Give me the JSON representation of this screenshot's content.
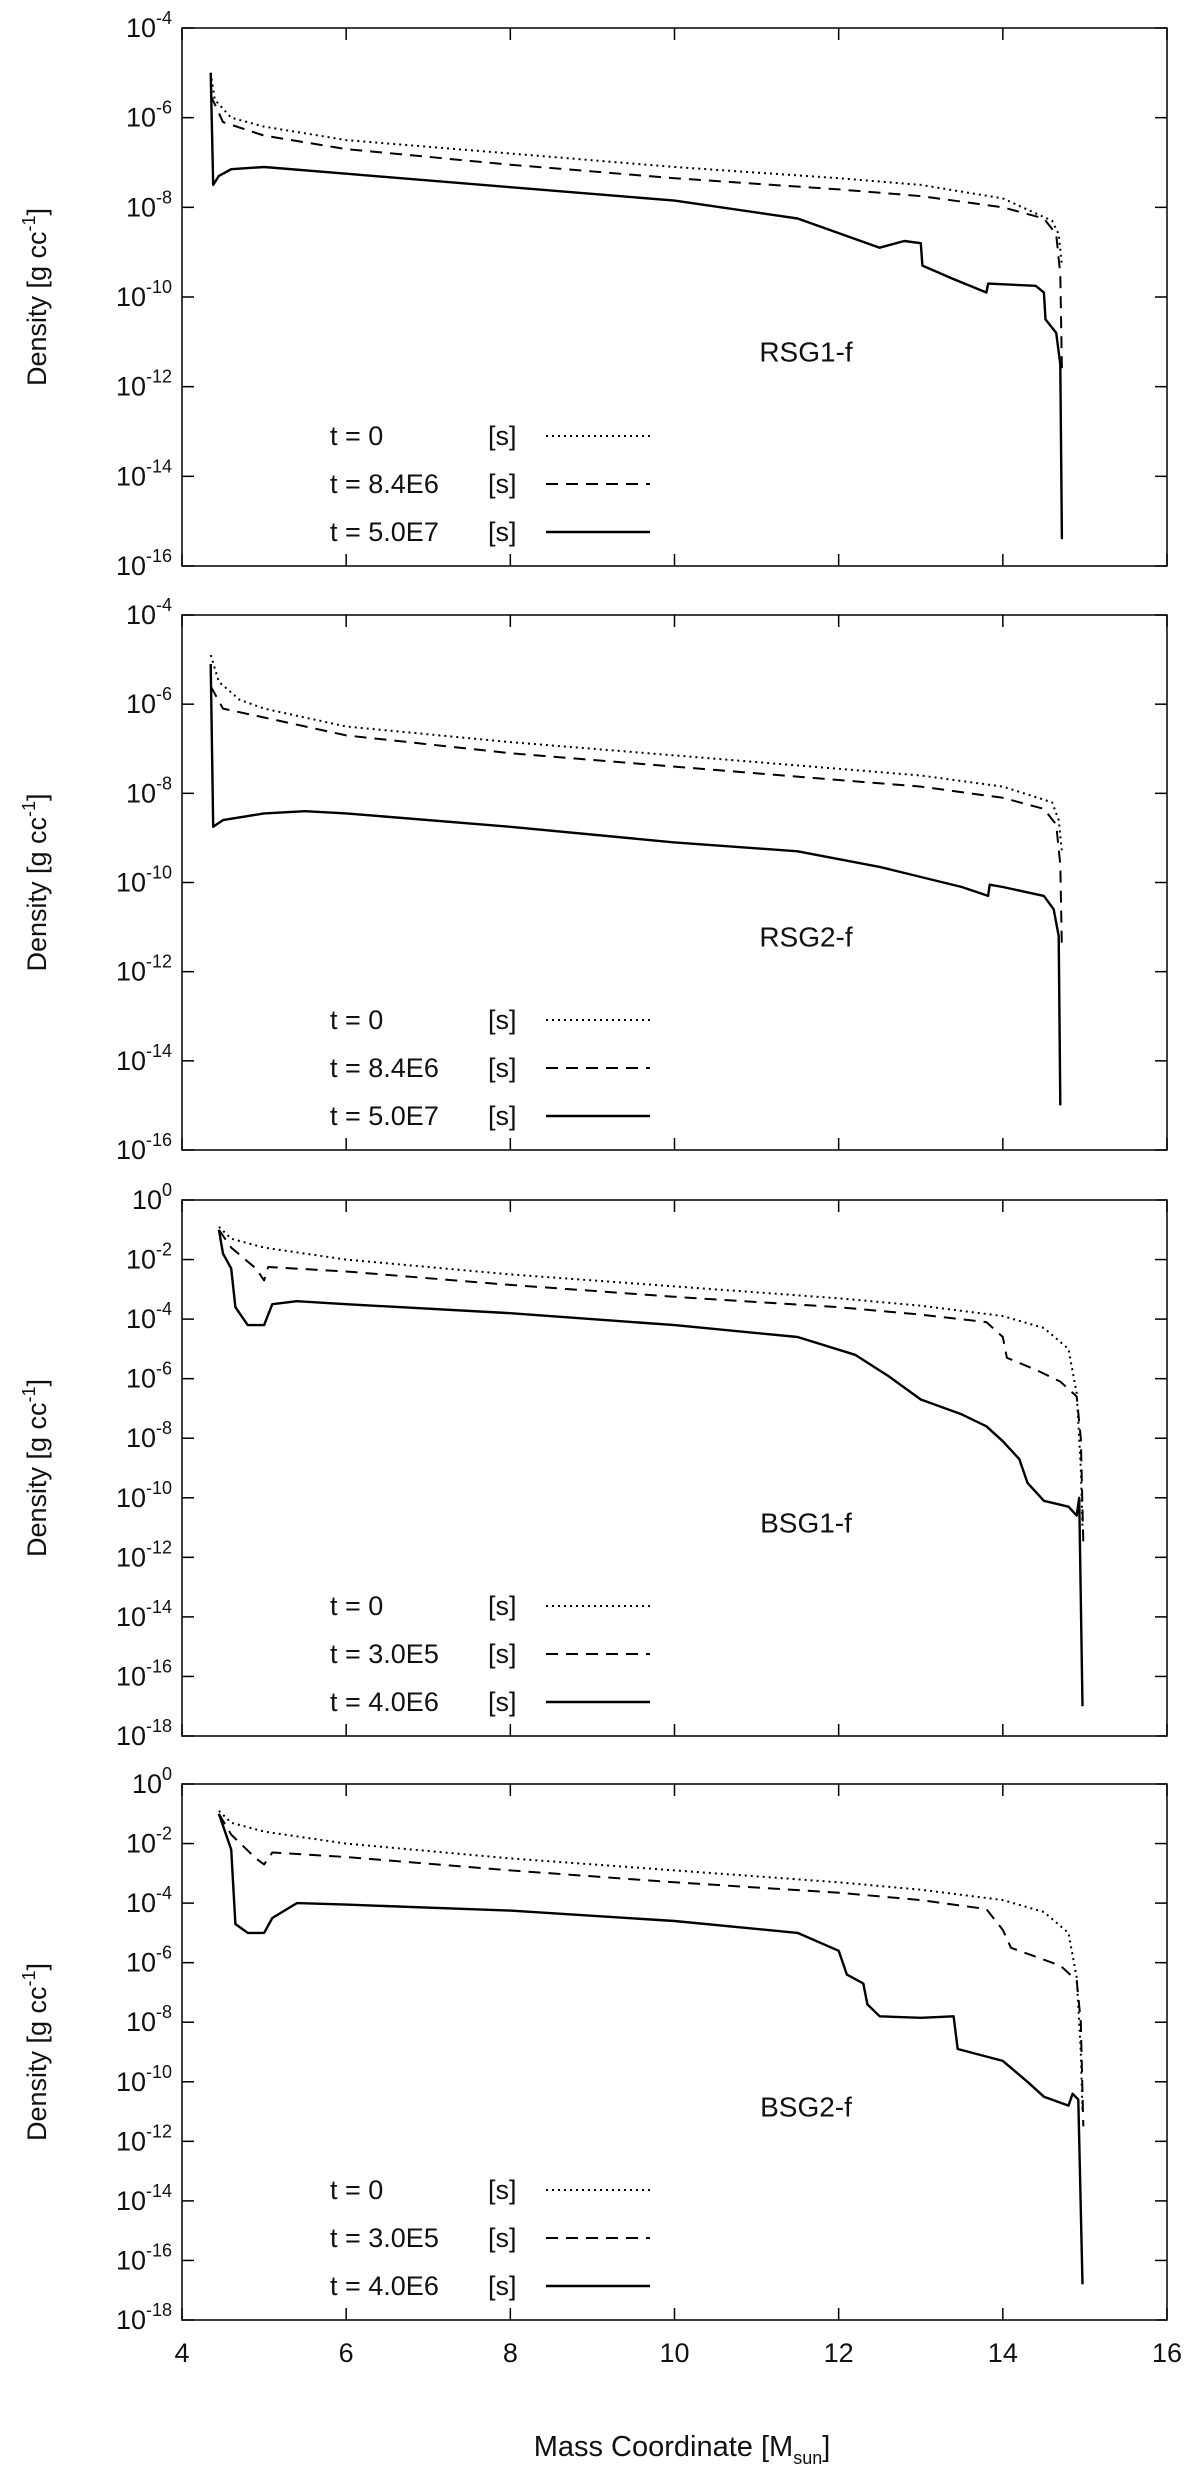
{
  "figure": {
    "xlabel_main": "Mass Coordinate [M",
    "xlabel_sub": "sun",
    "xlabel_end": "]"
  },
  "chart_data": [
    {
      "type": "line",
      "title": "RSG1-f",
      "ylabel_main": "Density [g cc",
      "ylabel_sup": "-1",
      "ylabel_end": "]",
      "xlim": [
        4,
        16
      ],
      "ylim_log10": [
        -16,
        -4
      ],
      "x_ticks": [
        "4",
        "6",
        "8",
        "10",
        "12",
        "14",
        "16"
      ],
      "y_ticks": [
        {
          "base": "10",
          "exp": "-4"
        },
        {
          "base": "10",
          "exp": "-6"
        },
        {
          "base": "10",
          "exp": "-8"
        },
        {
          "base": "10",
          "exp": "-10"
        },
        {
          "base": "10",
          "exp": "-12"
        },
        {
          "base": "10",
          "exp": "-14"
        },
        {
          "base": "10",
          "exp": "-16"
        }
      ],
      "series": [
        {
          "name": "t = 0",
          "unit": "[s]",
          "style": "dotted",
          "points": [
            [
              4.35,
              -5.0
            ],
            [
              4.4,
              -5.6
            ],
            [
              4.6,
              -6.0
            ],
            [
              5,
              -6.2
            ],
            [
              6,
              -6.5
            ],
            [
              8,
              -6.8
            ],
            [
              10,
              -7.1
            ],
            [
              12,
              -7.35
            ],
            [
              13,
              -7.5
            ],
            [
              14,
              -7.8
            ],
            [
              14.6,
              -8.3
            ],
            [
              14.68,
              -8.6
            ],
            [
              14.72,
              -9.3
            ]
          ]
        },
        {
          "name": "t = 8.4E6",
          "unit": "[s]",
          "style": "dashed",
          "points": [
            [
              4.35,
              -5.5
            ],
            [
              4.5,
              -6.1
            ],
            [
              5,
              -6.4
            ],
            [
              6,
              -6.7
            ],
            [
              8,
              -7.05
            ],
            [
              10,
              -7.35
            ],
            [
              12,
              -7.6
            ],
            [
              13,
              -7.75
            ],
            [
              14,
              -8.0
            ],
            [
              14.5,
              -8.25
            ],
            [
              14.65,
              -8.6
            ],
            [
              14.7,
              -9.5
            ],
            [
              14.72,
              -11.6
            ]
          ]
        },
        {
          "name": "t = 5.0E7",
          "unit": "[s]",
          "style": "solid",
          "points": [
            [
              4.35,
              -5.0
            ],
            [
              4.38,
              -7.5
            ],
            [
              4.45,
              -7.3
            ],
            [
              4.6,
              -7.15
            ],
            [
              5,
              -7.1
            ],
            [
              6,
              -7.25
            ],
            [
              8,
              -7.55
            ],
            [
              10,
              -7.85
            ],
            [
              11.5,
              -8.25
            ],
            [
              12.5,
              -8.9
            ],
            [
              12.8,
              -8.75
            ],
            [
              13.0,
              -8.8
            ],
            [
              13.02,
              -9.3
            ],
            [
              13.4,
              -9.6
            ],
            [
              13.8,
              -9.9
            ],
            [
              13.82,
              -9.7
            ],
            [
              14.4,
              -9.75
            ],
            [
              14.5,
              -9.9
            ],
            [
              14.52,
              -10.5
            ],
            [
              14.65,
              -10.8
            ],
            [
              14.7,
              -11.5
            ],
            [
              14.72,
              -15.4
            ]
          ]
        }
      ]
    },
    {
      "type": "line",
      "title": "RSG2-f",
      "ylabel_main": "Density [g cc",
      "ylabel_sup": "-1",
      "ylabel_end": "]",
      "xlim": [
        4,
        16
      ],
      "ylim_log10": [
        -16,
        -4
      ],
      "x_ticks": [
        "4",
        "6",
        "8",
        "10",
        "12",
        "14",
        "16"
      ],
      "y_ticks": [
        {
          "base": "10",
          "exp": "-4"
        },
        {
          "base": "10",
          "exp": "-6"
        },
        {
          "base": "10",
          "exp": "-8"
        },
        {
          "base": "10",
          "exp": "-10"
        },
        {
          "base": "10",
          "exp": "-12"
        },
        {
          "base": "10",
          "exp": "-14"
        },
        {
          "base": "10",
          "exp": "-16"
        }
      ],
      "series": [
        {
          "name": "t = 0",
          "unit": "[s]",
          "style": "dotted",
          "points": [
            [
              4.35,
              -4.9
            ],
            [
              4.45,
              -5.5
            ],
            [
              4.7,
              -5.9
            ],
            [
              5,
              -6.1
            ],
            [
              6,
              -6.5
            ],
            [
              8,
              -6.85
            ],
            [
              10,
              -7.15
            ],
            [
              12,
              -7.45
            ],
            [
              13,
              -7.6
            ],
            [
              14,
              -7.85
            ],
            [
              14.6,
              -8.2
            ],
            [
              14.68,
              -8.6
            ],
            [
              14.72,
              -9.3
            ]
          ]
        },
        {
          "name": "t = 8.4E6",
          "unit": "[s]",
          "style": "dashed",
          "points": [
            [
              4.35,
              -5.6
            ],
            [
              4.5,
              -6.1
            ],
            [
              5,
              -6.3
            ],
            [
              6,
              -6.7
            ],
            [
              8,
              -7.1
            ],
            [
              10,
              -7.4
            ],
            [
              12,
              -7.7
            ],
            [
              13,
              -7.85
            ],
            [
              14,
              -8.1
            ],
            [
              14.5,
              -8.35
            ],
            [
              14.65,
              -8.7
            ],
            [
              14.7,
              -9.6
            ],
            [
              14.72,
              -11.5
            ]
          ]
        },
        {
          "name": "t = 5.0E7",
          "unit": "[s]",
          "style": "solid",
          "points": [
            [
              4.35,
              -5.1
            ],
            [
              4.38,
              -8.75
            ],
            [
              4.5,
              -8.6
            ],
            [
              5,
              -8.45
            ],
            [
              5.5,
              -8.4
            ],
            [
              6,
              -8.45
            ],
            [
              8,
              -8.75
            ],
            [
              10,
              -9.1
            ],
            [
              11.5,
              -9.3
            ],
            [
              12.5,
              -9.65
            ],
            [
              13.5,
              -10.1
            ],
            [
              13.82,
              -10.3
            ],
            [
              13.84,
              -10.05
            ],
            [
              14.0,
              -10.1
            ],
            [
              14.5,
              -10.3
            ],
            [
              14.62,
              -10.6
            ],
            [
              14.68,
              -11.2
            ],
            [
              14.7,
              -15.0
            ]
          ]
        }
      ]
    },
    {
      "type": "line",
      "title": "BSG1-f",
      "ylabel_main": "Density [g cc",
      "ylabel_sup": "-1",
      "ylabel_end": "]",
      "xlim": [
        4,
        16
      ],
      "ylim_log10": [
        -18,
        0
      ],
      "x_ticks": [
        "4",
        "6",
        "8",
        "10",
        "12",
        "14",
        "16"
      ],
      "y_ticks": [
        {
          "base": "10",
          "exp": "0"
        },
        {
          "base": "10",
          "exp": "-2"
        },
        {
          "base": "10",
          "exp": "-4"
        },
        {
          "base": "10",
          "exp": "-6"
        },
        {
          "base": "10",
          "exp": "-8"
        },
        {
          "base": "10",
          "exp": "-10"
        },
        {
          "base": "10",
          "exp": "-12"
        },
        {
          "base": "10",
          "exp": "-14"
        },
        {
          "base": "10",
          "exp": "-16"
        },
        {
          "base": "10",
          "exp": "-18"
        }
      ],
      "series": [
        {
          "name": "t = 0",
          "unit": "[s]",
          "style": "dotted",
          "points": [
            [
              4.45,
              -0.9
            ],
            [
              4.6,
              -1.3
            ],
            [
              5,
              -1.6
            ],
            [
              6,
              -2.0
            ],
            [
              8,
              -2.5
            ],
            [
              10,
              -2.9
            ],
            [
              12,
              -3.3
            ],
            [
              13,
              -3.55
            ],
            [
              14,
              -3.9
            ],
            [
              14.5,
              -4.3
            ],
            [
              14.8,
              -5.0
            ],
            [
              14.9,
              -6.5
            ],
            [
              14.95,
              -9.0
            ],
            [
              14.97,
              -11.0
            ]
          ]
        },
        {
          "name": "t = 3.0E5",
          "unit": "[s]",
          "style": "dashed",
          "points": [
            [
              4.45,
              -1.0
            ],
            [
              4.6,
              -1.6
            ],
            [
              4.9,
              -2.3
            ],
            [
              5.0,
              -2.7
            ],
            [
              5.05,
              -2.25
            ],
            [
              6,
              -2.4
            ],
            [
              8,
              -2.85
            ],
            [
              10,
              -3.25
            ],
            [
              12,
              -3.6
            ],
            [
              13,
              -3.85
            ],
            [
              13.8,
              -4.1
            ],
            [
              14.0,
              -4.6
            ],
            [
              14.05,
              -5.3
            ],
            [
              14.4,
              -5.7
            ],
            [
              14.7,
              -6.1
            ],
            [
              14.9,
              -6.6
            ],
            [
              14.95,
              -8.0
            ],
            [
              14.98,
              -11.5
            ]
          ]
        },
        {
          "name": "t = 4.0E6",
          "unit": "[s]",
          "style": "solid",
          "points": [
            [
              4.45,
              -1.0
            ],
            [
              4.5,
              -1.8
            ],
            [
              4.6,
              -2.3
            ],
            [
              4.65,
              -3.6
            ],
            [
              4.8,
              -4.2
            ],
            [
              5.0,
              -4.2
            ],
            [
              5.1,
              -3.5
            ],
            [
              5.4,
              -3.4
            ],
            [
              6,
              -3.5
            ],
            [
              8,
              -3.8
            ],
            [
              10,
              -4.2
            ],
            [
              11.5,
              -4.6
            ],
            [
              12.2,
              -5.2
            ],
            [
              12.6,
              -5.9
            ],
            [
              13.0,
              -6.7
            ],
            [
              13.5,
              -7.2
            ],
            [
              13.8,
              -7.6
            ],
            [
              14.0,
              -8.1
            ],
            [
              14.2,
              -8.7
            ],
            [
              14.3,
              -9.5
            ],
            [
              14.5,
              -10.1
            ],
            [
              14.8,
              -10.3
            ],
            [
              14.9,
              -10.6
            ],
            [
              14.93,
              -10.0
            ],
            [
              14.97,
              -17.0
            ]
          ]
        }
      ]
    },
    {
      "type": "line",
      "title": "BSG2-f",
      "ylabel_main": "Density [g cc",
      "ylabel_sup": "-1",
      "ylabel_end": "]",
      "xlim": [
        4,
        16
      ],
      "ylim_log10": [
        -18,
        0
      ],
      "x_ticks": [
        "4",
        "6",
        "8",
        "10",
        "12",
        "14",
        "16"
      ],
      "y_ticks": [
        {
          "base": "10",
          "exp": "0"
        },
        {
          "base": "10",
          "exp": "-2"
        },
        {
          "base": "10",
          "exp": "-4"
        },
        {
          "base": "10",
          "exp": "-6"
        },
        {
          "base": "10",
          "exp": "-8"
        },
        {
          "base": "10",
          "exp": "-10"
        },
        {
          "base": "10",
          "exp": "-12"
        },
        {
          "base": "10",
          "exp": "-14"
        },
        {
          "base": "10",
          "exp": "-16"
        },
        {
          "base": "10",
          "exp": "-18"
        }
      ],
      "series": [
        {
          "name": "t = 0",
          "unit": "[s]",
          "style": "dotted",
          "points": [
            [
              4.45,
              -0.9
            ],
            [
              4.6,
              -1.3
            ],
            [
              5,
              -1.6
            ],
            [
              6,
              -2.0
            ],
            [
              8,
              -2.5
            ],
            [
              10,
              -2.9
            ],
            [
              12,
              -3.3
            ],
            [
              13,
              -3.55
            ],
            [
              14,
              -3.9
            ],
            [
              14.5,
              -4.3
            ],
            [
              14.8,
              -5.0
            ],
            [
              14.9,
              -6.5
            ],
            [
              14.95,
              -9.0
            ],
            [
              14.97,
              -11.0
            ]
          ]
        },
        {
          "name": "t = 3.0E5",
          "unit": "[s]",
          "style": "dashed",
          "points": [
            [
              4.45,
              -1.0
            ],
            [
              4.6,
              -1.7
            ],
            [
              4.9,
              -2.5
            ],
            [
              5.0,
              -2.7
            ],
            [
              5.1,
              -2.3
            ],
            [
              6,
              -2.45
            ],
            [
              8,
              -2.9
            ],
            [
              10,
              -3.3
            ],
            [
              12,
              -3.65
            ],
            [
              13,
              -3.9
            ],
            [
              13.8,
              -4.2
            ],
            [
              14.0,
              -4.9
            ],
            [
              14.1,
              -5.5
            ],
            [
              14.4,
              -5.8
            ],
            [
              14.7,
              -6.1
            ],
            [
              14.9,
              -6.6
            ],
            [
              14.95,
              -8.0
            ],
            [
              14.98,
              -11.5
            ]
          ]
        },
        {
          "name": "t = 4.0E6",
          "unit": "[s]",
          "style": "solid",
          "points": [
            [
              4.45,
              -1.0
            ],
            [
              4.55,
              -1.8
            ],
            [
              4.6,
              -2.2
            ],
            [
              4.65,
              -4.7
            ],
            [
              4.8,
              -5.0
            ],
            [
              5.0,
              -5.0
            ],
            [
              5.1,
              -4.5
            ],
            [
              5.4,
              -4.0
            ],
            [
              6,
              -4.05
            ],
            [
              8,
              -4.25
            ],
            [
              10,
              -4.6
            ],
            [
              11.5,
              -5.0
            ],
            [
              12.0,
              -5.6
            ],
            [
              12.1,
              -6.4
            ],
            [
              12.3,
              -6.7
            ],
            [
              12.35,
              -7.4
            ],
            [
              12.5,
              -7.8
            ],
            [
              13.0,
              -7.85
            ],
            [
              13.4,
              -7.8
            ],
            [
              13.45,
              -8.9
            ],
            [
              14.0,
              -9.3
            ],
            [
              14.3,
              -10.0
            ],
            [
              14.5,
              -10.5
            ],
            [
              14.8,
              -10.8
            ],
            [
              14.85,
              -10.4
            ],
            [
              14.92,
              -10.6
            ],
            [
              14.97,
              -16.8
            ]
          ]
        }
      ]
    }
  ]
}
